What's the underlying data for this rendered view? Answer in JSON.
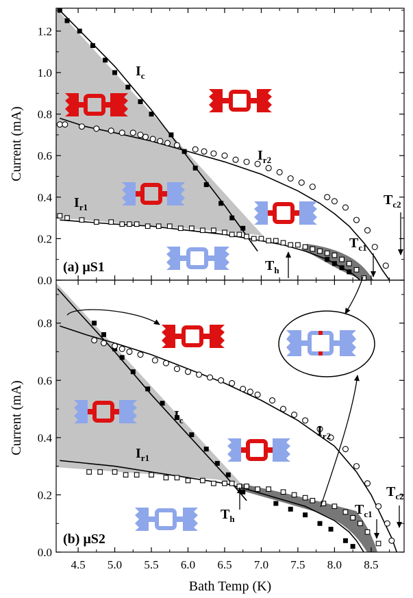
{
  "colors": {
    "red": "#dd1111",
    "blue": "#8ea6ea",
    "light_gray": "#c4c4c4",
    "dark_gray": "#777777"
  },
  "x_axis": {
    "title": "Bath Temp (K)",
    "ticks": [
      "4.5",
      "5.0",
      "5.5",
      "6.0",
      "6.5",
      "7.0",
      "7.5",
      "8.0",
      "8.5"
    ]
  },
  "chart_data": [
    {
      "type": "scatter",
      "panel": "(a) μS1",
      "panel_label": {
        "prefix": "(a) ",
        "name": "μS1"
      },
      "ylabel": "Current (mA)",
      "xlim": [
        4.2,
        8.95
      ],
      "ylim": [
        0,
        1.31
      ],
      "y_ticks": [
        "0.0",
        "0.2",
        "0.4",
        "0.6",
        "0.8",
        "1.0",
        "1.2"
      ],
      "series": [
        {
          "name": "Ic",
          "marker": "filled-square",
          "x": [
            4.25,
            4.35,
            4.52,
            4.7,
            4.87,
            5.0,
            5.18,
            5.35,
            5.5,
            5.77,
            5.95,
            6.1,
            6.25,
            6.45,
            6.6,
            6.75,
            7.9,
            8.0,
            8.1,
            8.2
          ],
          "y": [
            1.3,
            1.25,
            1.2,
            1.13,
            1.06,
            1.0,
            0.93,
            0.86,
            0.8,
            0.7,
            0.62,
            0.54,
            0.46,
            0.37,
            0.3,
            0.25,
            0.1,
            0.08,
            0.06,
            0.04
          ]
        },
        {
          "name": "Ir2",
          "marker": "open-circle",
          "x": [
            4.25,
            4.32,
            4.55,
            4.75,
            4.95,
            5.1,
            5.25,
            5.35,
            5.42,
            5.52,
            5.62,
            5.72,
            5.85,
            6.1,
            6.22,
            6.35,
            6.5,
            6.65,
            6.8,
            6.95,
            7.1,
            7.25,
            7.4,
            7.55,
            7.7,
            7.9,
            8.0,
            8.15,
            8.3,
            8.45,
            8.55,
            8.7
          ],
          "y": [
            0.75,
            0.75,
            0.74,
            0.73,
            0.72,
            0.71,
            0.71,
            0.7,
            0.69,
            0.68,
            0.67,
            0.66,
            0.65,
            0.63,
            0.62,
            0.61,
            0.6,
            0.58,
            0.57,
            0.56,
            0.54,
            0.52,
            0.49,
            0.47,
            0.45,
            0.4,
            0.38,
            0.35,
            0.29,
            0.24,
            0.16,
            0.07
          ]
        },
        {
          "name": "Ir1",
          "marker": "open-square",
          "x": [
            4.25,
            4.35,
            4.55,
            4.75,
            4.95,
            5.1,
            5.2,
            5.3,
            5.45,
            5.6,
            5.75,
            5.9,
            6.05,
            6.2,
            6.35,
            6.5,
            6.6,
            6.7,
            6.8,
            6.9,
            7.0,
            7.1,
            7.2,
            7.3,
            7.4,
            7.5,
            7.6,
            7.7,
            7.8,
            7.9,
            8.0,
            8.1,
            8.2,
            8.3,
            8.4
          ],
          "y": [
            0.31,
            0.3,
            0.29,
            0.28,
            0.28,
            0.27,
            0.27,
            0.27,
            0.26,
            0.26,
            0.26,
            0.25,
            0.25,
            0.24,
            0.24,
            0.23,
            0.22,
            0.22,
            0.21,
            0.2,
            0.2,
            0.19,
            0.19,
            0.18,
            0.17,
            0.17,
            0.16,
            0.15,
            0.14,
            0.13,
            0.12,
            0.1,
            0.08,
            0.05,
            0.01
          ]
        }
      ],
      "fit_lines": [
        {
          "x": [
            4.22,
            4.5,
            5.0,
            5.5,
            6.0,
            6.5,
            6.95
          ],
          "y": [
            1.31,
            1.21,
            1.03,
            0.82,
            0.59,
            0.36,
            0.14
          ]
        },
        {
          "x": [
            4.25,
            4.6,
            5.0,
            5.5,
            6.0,
            6.5,
            7.0,
            7.5,
            7.8,
            8.0,
            8.2,
            8.4,
            8.55,
            8.65,
            8.75
          ],
          "y": [
            0.78,
            0.74,
            0.71,
            0.67,
            0.62,
            0.57,
            0.51,
            0.43,
            0.37,
            0.32,
            0.26,
            0.18,
            0.11,
            0.05,
            0.0
          ]
        },
        {
          "x": [
            4.25,
            5.0,
            5.5,
            6.0,
            6.5,
            7.0,
            7.3,
            7.6,
            7.9,
            8.1,
            8.25,
            8.35
          ],
          "y": [
            0.29,
            0.27,
            0.26,
            0.24,
            0.22,
            0.19,
            0.17,
            0.14,
            0.1,
            0.06,
            0.03,
            0.0
          ]
        }
      ],
      "annotations": {
        "ic": {
          "main": "I",
          "sub": "c"
        },
        "ir1": {
          "main": "I",
          "sub": "r1"
        },
        "ir2": {
          "main": "I",
          "sub": "r2"
        },
        "th": {
          "main": "T",
          "sub": "h"
        },
        "tc1": {
          "main": "T",
          "sub": "c1"
        },
        "tc2": {
          "main": "T",
          "sub": "c2"
        }
      }
    },
    {
      "type": "scatter",
      "panel": "(b) μS2",
      "panel_label": {
        "prefix": "(b) ",
        "name": "μS2"
      },
      "ylabel": "Current (mA)",
      "xlim": [
        4.2,
        8.95
      ],
      "ylim": [
        0,
        0.95
      ],
      "y_ticks": [
        "0.0",
        "0.2",
        "0.4",
        "0.6",
        "0.8"
      ],
      "series": [
        {
          "name": "Ic",
          "marker": "filled-square",
          "x": [
            4.72,
            4.85,
            5.0,
            5.1,
            5.25,
            5.45,
            5.65,
            5.85,
            6.05,
            6.25,
            6.4,
            6.55,
            6.75,
            7.2,
            7.4,
            7.6,
            7.8,
            7.95,
            8.15,
            8.25
          ],
          "y": [
            0.8,
            0.76,
            0.71,
            0.68,
            0.63,
            0.57,
            0.52,
            0.47,
            0.41,
            0.36,
            0.31,
            0.27,
            0.21,
            0.17,
            0.15,
            0.13,
            0.1,
            0.08,
            0.04,
            0.02
          ]
        },
        {
          "name": "Ir2",
          "marker": "open-circle",
          "x": [
            4.72,
            4.85,
            5.0,
            5.1,
            5.2,
            5.35,
            5.55,
            5.7,
            5.85,
            6.0,
            6.15,
            6.3,
            6.45,
            6.6,
            6.75,
            6.85,
            6.95,
            7.15,
            7.3,
            7.45,
            7.6,
            7.8,
            7.95,
            8.15,
            8.3,
            8.45,
            8.6,
            8.72,
            8.78
          ],
          "y": [
            0.74,
            0.73,
            0.72,
            0.71,
            0.7,
            0.69,
            0.67,
            0.66,
            0.64,
            0.63,
            0.62,
            0.61,
            0.6,
            0.59,
            0.57,
            0.56,
            0.55,
            0.53,
            0.5,
            0.48,
            0.46,
            0.43,
            0.4,
            0.36,
            0.3,
            0.24,
            0.16,
            0.1,
            0.04
          ]
        },
        {
          "name": "Ir1",
          "marker": "open-square",
          "x": [
            4.65,
            4.8,
            5.0,
            5.15,
            5.3,
            5.5,
            5.7,
            5.85,
            6.0,
            6.2,
            6.35,
            6.5,
            6.6,
            6.7,
            6.8,
            6.95,
            7.1,
            7.3,
            7.45,
            7.6,
            7.7,
            7.85,
            8.0,
            8.15,
            8.25,
            8.35,
            8.45,
            8.6
          ],
          "y": [
            0.28,
            0.28,
            0.28,
            0.27,
            0.27,
            0.27,
            0.26,
            0.26,
            0.25,
            0.25,
            0.24,
            0.24,
            0.24,
            0.23,
            0.23,
            0.22,
            0.22,
            0.21,
            0.2,
            0.19,
            0.18,
            0.17,
            0.16,
            0.14,
            0.12,
            0.1,
            0.07,
            0.03
          ]
        }
      ],
      "fit_lines": [
        {
          "x": [
            4.22,
            4.5,
            5.0,
            5.5,
            6.0,
            6.5,
            6.8
          ],
          "y": [
            0.92,
            0.84,
            0.7,
            0.55,
            0.41,
            0.27,
            0.18
          ]
        },
        {
          "x": [
            4.25,
            4.6,
            5.0,
            5.5,
            6.0,
            6.5,
            7.0,
            7.5,
            8.0,
            8.3,
            8.5,
            8.65,
            8.78,
            8.85
          ],
          "y": [
            0.79,
            0.76,
            0.73,
            0.69,
            0.64,
            0.59,
            0.53,
            0.46,
            0.37,
            0.28,
            0.2,
            0.12,
            0.05,
            0.0
          ]
        },
        {
          "x": [
            4.25,
            5.0,
            5.5,
            6.0,
            6.5,
            6.8,
            7.2,
            7.6,
            8.0,
            8.2,
            8.3,
            8.4
          ],
          "y": [
            0.32,
            0.3,
            0.28,
            0.26,
            0.24,
            0.22,
            0.19,
            0.16,
            0.11,
            0.07,
            0.04,
            0.0
          ]
        }
      ],
      "annotations": {
        "ic": {
          "main": "I",
          "sub": "c"
        },
        "ir1": {
          "main": "I",
          "sub": "r1"
        },
        "ir2": {
          "main": "I",
          "sub": "r2"
        },
        "th": {
          "main": "T",
          "sub": "h"
        },
        "tc1": {
          "main": "T",
          "sub": "c1"
        },
        "tc2": {
          "main": "T",
          "sub": "c2"
        }
      }
    }
  ]
}
